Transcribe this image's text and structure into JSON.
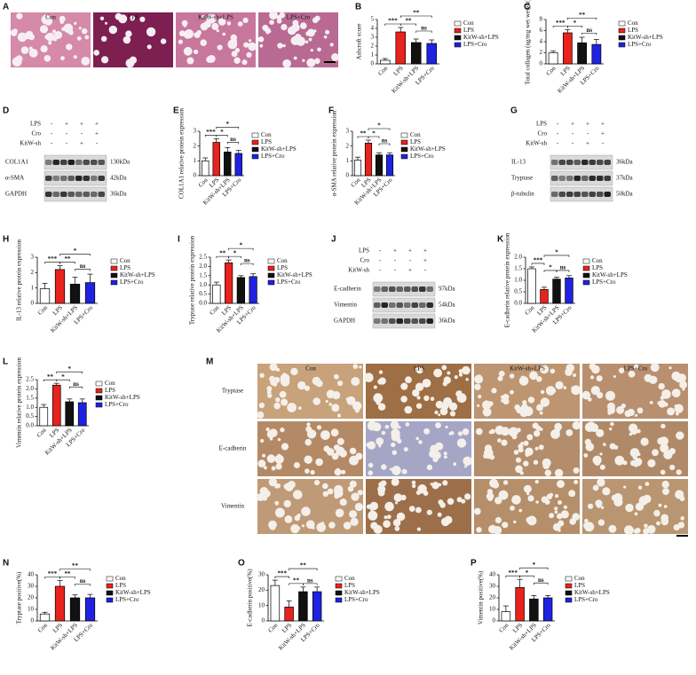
{
  "panel_letters": [
    "A",
    "B",
    "C",
    "D",
    "E",
    "F",
    "G",
    "H",
    "I",
    "J",
    "K",
    "L",
    "M",
    "N",
    "O",
    "P"
  ],
  "histology": {
    "labels": [
      "Con",
      "LPS",
      "KitW-sh+LPS",
      "LPS+Cro"
    ]
  },
  "blots": [
    {
      "conditions": [
        {
          "label": "LPS",
          "signs": [
            "-",
            "+",
            "+",
            "+"
          ]
        },
        {
          "label": "Cro",
          "signs": [
            "-",
            "-",
            "-",
            "+"
          ]
        },
        {
          "label": "KitW-sh",
          "signs": [
            "-",
            "-",
            "+",
            "-"
          ]
        }
      ],
      "bands": [
        {
          "protein": "COL1A1",
          "size": "130kDa"
        },
        {
          "protein": "α-SMA",
          "size": "42kDa"
        },
        {
          "protein": "GAPDH",
          "size": "36kDa"
        }
      ]
    },
    {
      "conditions": [
        {
          "label": "LPS",
          "signs": [
            "-",
            "+",
            "+",
            "+"
          ]
        },
        {
          "label": "Cro",
          "signs": [
            "-",
            "-",
            "-",
            "+"
          ]
        },
        {
          "label": "KitW-sh",
          "signs": [
            "-",
            "-",
            "+",
            "-"
          ]
        }
      ],
      "bands": [
        {
          "protein": "IL-13",
          "size": "36kDa"
        },
        {
          "protein": "Tryptase",
          "size": "37kDa"
        },
        {
          "protein": "β-tubulin",
          "size": "50kDa"
        }
      ]
    },
    {
      "conditions": [
        {
          "label": "LPS",
          "signs": [
            "-",
            "+",
            "+",
            "+"
          ]
        },
        {
          "label": "Cro",
          "signs": [
            "-",
            "-",
            "-",
            "+"
          ]
        },
        {
          "label": "KitW-sh",
          "signs": [
            "-",
            "-",
            "+",
            "-"
          ]
        }
      ],
      "bands": [
        {
          "protein": "E-cadherin",
          "size": "97kDa"
        },
        {
          "protein": "Vimentin",
          "size": "54kDa"
        },
        {
          "protein": "GAPDH",
          "size": "36kDa"
        }
      ]
    }
  ],
  "ihc": {
    "columns": [
      "Con",
      "LPS",
      "KitW-sh+LPS",
      "LPS+Cro"
    ],
    "rows": [
      "Tryptase",
      "E-cadherin",
      "Vimentin"
    ]
  },
  "chart_data": [
    {
      "type": "bar",
      "ylabel": "Ashcroft score",
      "categories": [
        "Con",
        "LPS",
        "KitW-sh+LPS",
        "LPS+Cro"
      ],
      "colors": [
        "#ffffff",
        "#e8221d",
        "#111111",
        "#1f22e0"
      ],
      "values": [
        0.4,
        3.6,
        2.4,
        2.3
      ],
      "errors": [
        0.2,
        0.5,
        0.4,
        0.4
      ],
      "ylim": [
        0,
        5
      ],
      "yticks": [
        0,
        1,
        2,
        3,
        4,
        5
      ],
      "significance": [
        {
          "pair": [
            "Con",
            "LPS"
          ],
          "label": "***"
        },
        {
          "pair": [
            "LPS",
            "KitW-sh+LPS"
          ],
          "label": "**"
        },
        {
          "pair": [
            "KitW-sh+LPS",
            "LPS+Cro"
          ],
          "label": "ns"
        },
        {
          "pair": [
            "LPS",
            "LPS+Cro"
          ],
          "label": "**"
        }
      ]
    },
    {
      "type": "bar",
      "ylabel": "Total collagen (ug/mg wet weight)",
      "categories": [
        "Con",
        "LPS",
        "KitW-sh+LPS",
        "LPS+Cro"
      ],
      "colors": [
        "#ffffff",
        "#e8221d",
        "#111111",
        "#1f22e0"
      ],
      "values": [
        2.0,
        5.6,
        3.8,
        3.5
      ],
      "errors": [
        0.3,
        0.6,
        1.0,
        0.9
      ],
      "ylim": [
        0,
        8
      ],
      "yticks": [
        0,
        2,
        4,
        6,
        8
      ],
      "significance": [
        {
          "pair": [
            "Con",
            "LPS"
          ],
          "label": "***"
        },
        {
          "pair": [
            "LPS",
            "KitW-sh+LPS"
          ],
          "label": "*"
        },
        {
          "pair": [
            "KitW-sh+LPS",
            "LPS+Cro"
          ],
          "label": "ns"
        },
        {
          "pair": [
            "LPS",
            "LPS+Cro"
          ],
          "label": "**"
        }
      ]
    },
    {
      "type": "bar",
      "ylabel": "COL1A1 relative protein expression",
      "categories": [
        "Con",
        "LPS",
        "KitW-sh+LPS",
        "LPS+Cro"
      ],
      "colors": [
        "#ffffff",
        "#e8221d",
        "#111111",
        "#1f22e0"
      ],
      "values": [
        1.0,
        2.25,
        1.6,
        1.5
      ],
      "errors": [
        0.2,
        0.25,
        0.3,
        0.2
      ],
      "ylim": [
        0,
        3
      ],
      "yticks": [
        0,
        1,
        2,
        3
      ],
      "significance": [
        {
          "pair": [
            "Con",
            "LPS"
          ],
          "label": "***"
        },
        {
          "pair": [
            "LPS",
            "KitW-sh+LPS"
          ],
          "label": "*"
        },
        {
          "pair": [
            "KitW-sh+LPS",
            "LPS+Cro"
          ],
          "label": "ns"
        },
        {
          "pair": [
            "LPS",
            "LPS+Cro"
          ],
          "label": "*"
        }
      ]
    },
    {
      "type": "bar",
      "ylabel": "α-SMA relative protein expression",
      "categories": [
        "Con",
        "LPS",
        "KitW-sh+LPS",
        "LPS+Cro"
      ],
      "colors": [
        "#ffffff",
        "#e8221d",
        "#111111",
        "#1f22e0"
      ],
      "values": [
        1.05,
        2.2,
        1.4,
        1.4
      ],
      "errors": [
        0.2,
        0.2,
        0.15,
        0.15
      ],
      "ylim": [
        0,
        3
      ],
      "yticks": [
        0,
        1,
        2,
        3
      ],
      "significance": [
        {
          "pair": [
            "Con",
            "LPS"
          ],
          "label": "**"
        },
        {
          "pair": [
            "LPS",
            "KitW-sh+LPS"
          ],
          "label": "*"
        },
        {
          "pair": [
            "KitW-sh+LPS",
            "LPS+Cro"
          ],
          "label": "ns"
        },
        {
          "pair": [
            "LPS",
            "LPS+Cro"
          ],
          "label": "*"
        }
      ]
    },
    {
      "type": "bar",
      "ylabel": "IL-13 relative protein expression",
      "categories": [
        "Con",
        "LPS",
        "KitW-sh+LPS",
        "LPS+Cro"
      ],
      "colors": [
        "#ffffff",
        "#e8221d",
        "#111111",
        "#1f22e0"
      ],
      "values": [
        0.95,
        2.2,
        1.25,
        1.35
      ],
      "errors": [
        0.35,
        0.25,
        0.45,
        0.55
      ],
      "ylim": [
        0,
        3
      ],
      "yticks": [
        0,
        1,
        2,
        3
      ],
      "significance": [
        {
          "pair": [
            "Con",
            "LPS"
          ],
          "label": "***"
        },
        {
          "pair": [
            "LPS",
            "KitW-sh+LPS"
          ],
          "label": "**"
        },
        {
          "pair": [
            "KitW-sh+LPS",
            "LPS+Cro"
          ],
          "label": "ns"
        },
        {
          "pair": [
            "LPS",
            "LPS+Cro"
          ],
          "label": "*"
        }
      ]
    },
    {
      "type": "bar",
      "ylabel": "Tryptase relative protein expression",
      "categories": [
        "Con",
        "LPS",
        "KitW-sh+LPS",
        "LPS+Cro"
      ],
      "colors": [
        "#ffffff",
        "#e8221d",
        "#111111",
        "#1f22e0"
      ],
      "values": [
        1.0,
        2.2,
        1.4,
        1.45
      ],
      "errors": [
        0.15,
        0.15,
        0.1,
        0.15
      ],
      "ylim": [
        0,
        2.5
      ],
      "yticks": [
        {
          "value": 0,
          "label": "0.0"
        },
        {
          "value": 0.5,
          "label": "0.5"
        },
        {
          "value": 1,
          "label": "1.0"
        },
        {
          "value": 1.5,
          "label": "1.5"
        },
        {
          "value": 2,
          "label": "2.0"
        },
        {
          "value": 2.5,
          "label": "2.5"
        }
      ],
      "significance": [
        {
          "pair": [
            "Con",
            "LPS"
          ],
          "label": "**"
        },
        {
          "pair": [
            "LPS",
            "KitW-sh+LPS"
          ],
          "label": "*"
        },
        {
          "pair": [
            "KitW-sh+LPS",
            "LPS+Cro"
          ],
          "label": "ns"
        },
        {
          "pair": [
            "LPS",
            "LPS+Cro"
          ],
          "label": "*"
        }
      ]
    },
    {
      "type": "bar",
      "ylabel": "E-cadherin relative protein expression",
      "categories": [
        "Con",
        "LPS",
        "KitW-sh+LPS",
        "LPS+Cro"
      ],
      "colors": [
        "#ffffff",
        "#e8221d",
        "#111111",
        "#1f22e0"
      ],
      "values": [
        1.5,
        0.6,
        1.05,
        1.1
      ],
      "errors": [
        0.08,
        0.1,
        0.08,
        0.1
      ],
      "ylim": [
        0,
        2
      ],
      "yticks": [
        {
          "value": 0,
          "label": "0.0"
        },
        {
          "value": 0.5,
          "label": "0.5"
        },
        {
          "value": 1,
          "label": "1.0"
        },
        {
          "value": 1.5,
          "label": "1.5"
        },
        {
          "value": 2,
          "label": "2.0"
        }
      ],
      "significance": [
        {
          "pair": [
            "Con",
            "LPS"
          ],
          "label": "***"
        },
        {
          "pair": [
            "LPS",
            "KitW-sh+LPS"
          ],
          "label": "*"
        },
        {
          "pair": [
            "KitW-sh+LPS",
            "LPS+Cro"
          ],
          "label": "ns"
        },
        {
          "pair": [
            "LPS",
            "LPS+Cro"
          ],
          "label": "*"
        }
      ]
    },
    {
      "type": "bar",
      "ylabel": "Vimentin relative protein expression",
      "categories": [
        "Con",
        "LPS",
        "KitW-sh+LPS",
        "LPS+Cro"
      ],
      "colors": [
        "#ffffff",
        "#e8221d",
        "#111111",
        "#1f22e0"
      ],
      "values": [
        1.0,
        2.2,
        1.3,
        1.25
      ],
      "errors": [
        0.15,
        0.1,
        0.15,
        0.2
      ],
      "ylim": [
        0,
        2.5
      ],
      "yticks": [
        {
          "value": 0,
          "label": "0.0"
        },
        {
          "value": 0.5,
          "label": "0.5"
        },
        {
          "value": 1,
          "label": "1.0"
        },
        {
          "value": 1.5,
          "label": "1.5"
        },
        {
          "value": 2,
          "label": "2.0"
        },
        {
          "value": 2.5,
          "label": "2.5"
        }
      ],
      "significance": [
        {
          "pair": [
            "Con",
            "LPS"
          ],
          "label": "**"
        },
        {
          "pair": [
            "LPS",
            "KitW-sh+LPS"
          ],
          "label": "*"
        },
        {
          "pair": [
            "KitW-sh+LPS",
            "LPS+Cro"
          ],
          "label": "ns"
        },
        {
          "pair": [
            "LPS",
            "LPS+Cro"
          ],
          "label": "*"
        }
      ]
    },
    {
      "type": "bar",
      "ylabel": "Tryptase positive(%)",
      "categories": [
        "Con",
        "LPS",
        "KitW-sh+LPS",
        "LPS+Cro"
      ],
      "colors": [
        "#ffffff",
        "#e8221d",
        "#111111",
        "#1f22e0"
      ],
      "values": [
        6,
        30,
        20,
        20
      ],
      "errors": [
        1.5,
        5,
        2.5,
        3
      ],
      "ylim": [
        0,
        40
      ],
      "yticks": [
        0,
        10,
        20,
        30,
        40
      ],
      "significance": [
        {
          "pair": [
            "Con",
            "LPS"
          ],
          "label": "***"
        },
        {
          "pair": [
            "LPS",
            "KitW-sh+LPS"
          ],
          "label": "**"
        },
        {
          "pair": [
            "KitW-sh+LPS",
            "LPS+Cro"
          ],
          "label": "ns"
        },
        {
          "pair": [
            "LPS",
            "LPS+Cro"
          ],
          "label": "**"
        }
      ]
    },
    {
      "type": "bar",
      "ylabel": "E-cadherin positive(%)",
      "categories": [
        "Con",
        "LPS",
        "KitW-sh+LPS",
        "LPS+Cro"
      ],
      "colors": [
        "#ffffff",
        "#e8221d",
        "#111111",
        "#1f22e0"
      ],
      "values": [
        23,
        9,
        19,
        19
      ],
      "errors": [
        3.5,
        4,
        3,
        3
      ],
      "ylim": [
        0,
        30
      ],
      "yticks": [
        0,
        10,
        20,
        30
      ],
      "significance": [
        {
          "pair": [
            "Con",
            "LPS"
          ],
          "label": "***"
        },
        {
          "pair": [
            "LPS",
            "KitW-sh+LPS"
          ],
          "label": "**"
        },
        {
          "pair": [
            "KitW-sh+LPS",
            "LPS+Cro"
          ],
          "label": "ns"
        },
        {
          "pair": [
            "LPS",
            "LPS+Cro"
          ],
          "label": "**"
        }
      ]
    },
    {
      "type": "bar",
      "ylabel": "Vimentin positive(%)",
      "categories": [
        "Con",
        "LPS",
        "KitW-sh+LPS",
        "LPS+Cro"
      ],
      "colors": [
        "#ffffff",
        "#e8221d",
        "#111111",
        "#1f22e0"
      ],
      "values": [
        8,
        29,
        19,
        20
      ],
      "errors": [
        5,
        7,
        3,
        2
      ],
      "ylim": [
        0,
        40
      ],
      "yticks": [
        0,
        10,
        20,
        30,
        40
      ],
      "significance": [
        {
          "pair": [
            "Con",
            "LPS"
          ],
          "label": "***"
        },
        {
          "pair": [
            "LPS",
            "KitW-sh+LPS"
          ],
          "label": "*"
        },
        {
          "pair": [
            "KitW-sh+LPS",
            "LPS+Cro"
          ],
          "label": "ns"
        },
        {
          "pair": [
            "LPS",
            "LPS+Cro"
          ],
          "label": "*"
        }
      ]
    }
  ]
}
